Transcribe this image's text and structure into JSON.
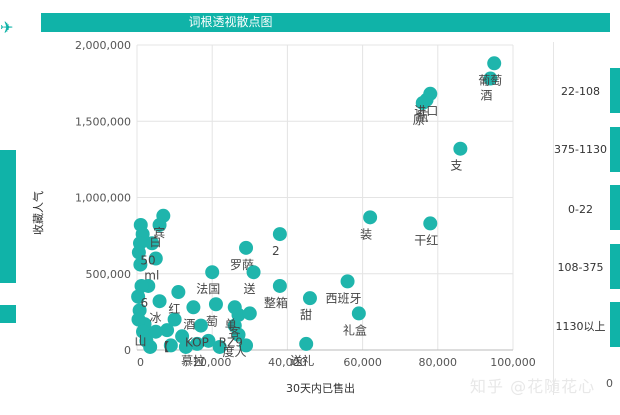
{
  "header": {
    "title": "词根透视散点图"
  },
  "legend_ranges": [
    "22-108",
    "375-1130",
    "0-22",
    "108-375",
    "1130以上"
  ],
  "watermark": "知乎 @花随花心",
  "bottom_zero": "0",
  "colors": {
    "accent": "#10b3a8",
    "point": "#1fb5ac",
    "grid": "#e4e4e4"
  },
  "chart_data": {
    "type": "scatter",
    "title": "词根透视散点图",
    "xlabel": "30天内已售出",
    "ylabel": "收藏人气",
    "xlim": [
      0,
      100000
    ],
    "ylim": [
      0,
      2000000
    ],
    "x_ticks": [
      "0",
      "20,000",
      "40,000",
      "60,000",
      "80,000",
      "100,000"
    ],
    "y_ticks": [
      "0",
      "500,000",
      "1,000,000",
      "1,500,000",
      "2,000,000"
    ],
    "grid": true,
    "points": [
      {
        "x": 95000,
        "y": 1880000,
        "label": "葡萄"
      },
      {
        "x": 94000,
        "y": 1780000,
        "label": "酒"
      },
      {
        "x": 78000,
        "y": 1680000,
        "label": "进口"
      },
      {
        "x": 77000,
        "y": 1640000,
        "label": "瓶"
      },
      {
        "x": 76000,
        "y": 1620000,
        "label": "原"
      },
      {
        "x": 86000,
        "y": 1320000,
        "label": "支"
      },
      {
        "x": 62000,
        "y": 870000,
        "label": "装"
      },
      {
        "x": 78000,
        "y": 830000,
        "label": "干红"
      },
      {
        "x": 38000,
        "y": 760000,
        "label": "2"
      },
      {
        "x": 29000,
        "y": 670000,
        "label": "罗萨"
      },
      {
        "x": 31000,
        "y": 510000,
        "label": "送"
      },
      {
        "x": 20000,
        "y": 510000,
        "label": "法国"
      },
      {
        "x": 56000,
        "y": 450000,
        "label": "西班牙"
      },
      {
        "x": 38000,
        "y": 420000,
        "label": "整箱"
      },
      {
        "x": 46000,
        "y": 340000,
        "label": "甜"
      },
      {
        "x": 59000,
        "y": 240000,
        "label": "礼盒"
      },
      {
        "x": 45000,
        "y": 40000,
        "label": "送礼"
      },
      {
        "x": 26000,
        "y": 280000,
        "label": "单"
      },
      {
        "x": 21000,
        "y": 300000,
        "label": "萄"
      },
      {
        "x": 27000,
        "y": 230000,
        "label": "客"
      },
      {
        "x": 26000,
        "y": 160000,
        "label": "RZ9"
      },
      {
        "x": 27000,
        "y": 100000,
        "label": "度人"
      },
      {
        "x": 15000,
        "y": 280000,
        "label": "酒"
      },
      {
        "x": 17000,
        "y": 160000,
        "label": "KOP"
      },
      {
        "x": 16000,
        "y": 40000,
        "label": "慕拉"
      },
      {
        "x": 11000,
        "y": 380000,
        "label": "红"
      },
      {
        "x": 6000,
        "y": 320000,
        "label": "冰"
      },
      {
        "x": 5000,
        "y": 600000,
        "label": "ml"
      },
      {
        "x": 4000,
        "y": 700000,
        "label": "50"
      },
      {
        "x": 7000,
        "y": 880000,
        "label": "宾"
      },
      {
        "x": 6000,
        "y": 820000,
        "label": "白"
      },
      {
        "x": 3000,
        "y": 420000,
        "label": "6"
      },
      {
        "x": 2000,
        "y": 170000,
        "label": "山"
      },
      {
        "x": 8000,
        "y": 130000,
        "label": "【"
      },
      {
        "x": 1000,
        "y": 820000,
        "label": ""
      },
      {
        "x": 1500,
        "y": 760000,
        "label": ""
      },
      {
        "x": 800,
        "y": 700000,
        "label": ""
      },
      {
        "x": 500,
        "y": 640000,
        "label": ""
      },
      {
        "x": 900,
        "y": 560000,
        "label": ""
      },
      {
        "x": 1200,
        "y": 420000,
        "label": ""
      },
      {
        "x": 300,
        "y": 350000,
        "label": ""
      },
      {
        "x": 700,
        "y": 260000,
        "label": ""
      },
      {
        "x": 400,
        "y": 200000,
        "label": ""
      },
      {
        "x": 1600,
        "y": 120000,
        "label": ""
      },
      {
        "x": 2500,
        "y": 60000,
        "label": ""
      },
      {
        "x": 3500,
        "y": 20000,
        "label": ""
      },
      {
        "x": 9000,
        "y": 30000,
        "label": ""
      },
      {
        "x": 12000,
        "y": 90000,
        "label": ""
      },
      {
        "x": 13000,
        "y": 20000,
        "label": ""
      },
      {
        "x": 19000,
        "y": 60000,
        "label": ""
      },
      {
        "x": 22000,
        "y": 20000,
        "label": ""
      },
      {
        "x": 29000,
        "y": 30000,
        "label": ""
      },
      {
        "x": 30000,
        "y": 240000,
        "label": ""
      },
      {
        "x": 5000,
        "y": 120000,
        "label": ""
      },
      {
        "x": 10000,
        "y": 200000,
        "label": ""
      }
    ]
  }
}
